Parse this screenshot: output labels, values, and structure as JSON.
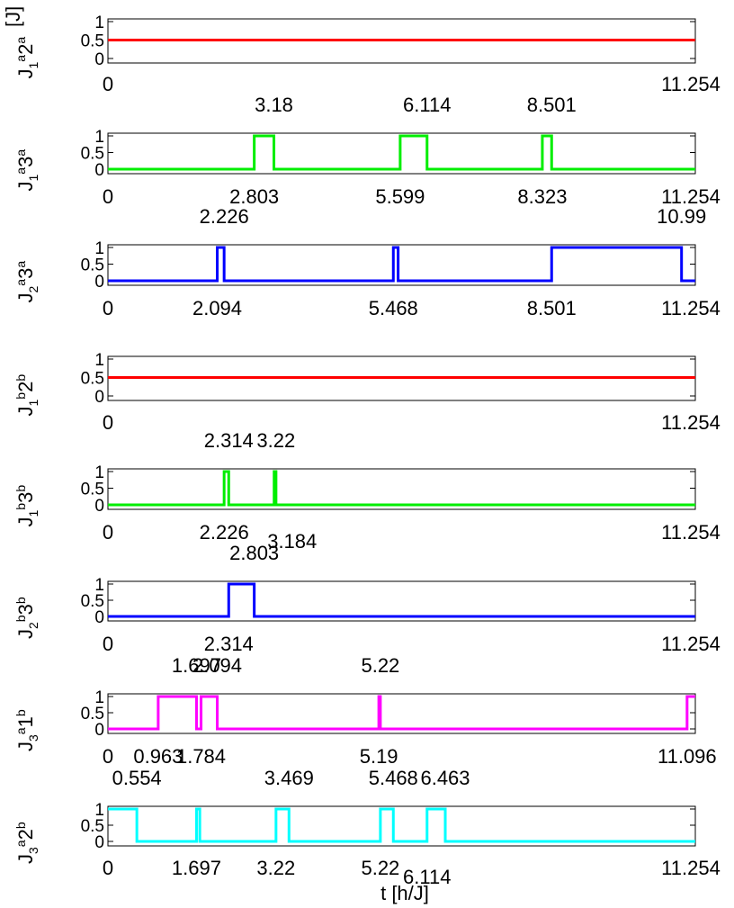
{
  "figure": {
    "xlabel": "t [h/J]",
    "unit_label": "[J]"
  },
  "chart_data": [
    {
      "type": "line",
      "ylabel": {
        "main": "J",
        "s1": "1",
        "s2": "a",
        "s3": "2",
        "s4": "a"
      },
      "color": "#ff0000",
      "xlim": [
        0,
        11.254
      ],
      "ylim": [
        0,
        1
      ],
      "yticks": [
        "0",
        "0.5",
        "1"
      ],
      "series": [
        {
          "x": [
            0,
            11.254
          ],
          "y": [
            0.5,
            0.5
          ]
        }
      ],
      "top_labels": [],
      "bottom_labels": [
        "0",
        "11.254"
      ]
    },
    {
      "type": "line",
      "ylabel": {
        "main": "J",
        "s1": "1",
        "s2": "a",
        "s3": "3",
        "s4": "a"
      },
      "color": "#00ee00",
      "xlim": [
        0,
        11.254
      ],
      "ylim": [
        0,
        1
      ],
      "yticks": [
        "0",
        "0.5",
        "1"
      ],
      "series": [
        {
          "x": [
            0,
            2.803,
            2.803,
            3.18,
            3.18,
            5.599,
            5.599,
            6.114,
            6.114,
            8.323,
            8.323,
            8.501,
            8.501,
            11.254
          ],
          "y": [
            0,
            0,
            1,
            1,
            0,
            0,
            1,
            1,
            0,
            0,
            1,
            1,
            0,
            0
          ]
        }
      ],
      "top_labels": [
        "3.18",
        "6.114",
        "8.501"
      ],
      "bottom_labels": [
        "0",
        "2.803",
        "5.599",
        "8.323",
        "11.254"
      ]
    },
    {
      "type": "line",
      "ylabel": {
        "main": "J",
        "s1": "2",
        "s2": "a",
        "s3": "3",
        "s4": "a"
      },
      "color": "#0000ff",
      "xlim": [
        0,
        11.254
      ],
      "ylim": [
        0,
        1
      ],
      "yticks": [
        "0",
        "0.5",
        "1"
      ],
      "series": [
        {
          "x": [
            0,
            2.094,
            2.094,
            2.226,
            2.226,
            5.468,
            5.468,
            5.56,
            5.56,
            8.501,
            8.501,
            10.99,
            10.99,
            11.254
          ],
          "y": [
            0,
            0,
            1,
            1,
            0,
            0,
            1,
            1,
            0,
            0,
            1,
            1,
            0,
            0
          ]
        }
      ],
      "top_labels": [
        "2.226",
        "10.99"
      ],
      "bottom_labels": [
        "0",
        "2.094",
        "5.468",
        "8.501",
        "11.254"
      ]
    },
    {
      "type": "line",
      "ylabel": {
        "main": "J",
        "s1": "1",
        "s2": "b",
        "s3": "2",
        "s4": "b"
      },
      "color": "#ff0000",
      "xlim": [
        0,
        11.254
      ],
      "ylim": [
        0,
        1
      ],
      "yticks": [
        "0",
        "0.5",
        "1"
      ],
      "series": [
        {
          "x": [
            0,
            11.254
          ],
          "y": [
            0.5,
            0.5
          ]
        }
      ],
      "top_labels": [],
      "bottom_labels": [
        "0",
        "11.254"
      ]
    },
    {
      "type": "line",
      "ylabel": {
        "main": "J",
        "s1": "1",
        "s2": "b",
        "s3": "3",
        "s4": "b"
      },
      "color": "#00ee00",
      "xlim": [
        0,
        11.254
      ],
      "ylim": [
        0,
        1
      ],
      "yticks": [
        "0",
        "0.5",
        "1"
      ],
      "series": [
        {
          "x": [
            0,
            2.226,
            2.226,
            2.314,
            2.314,
            3.184,
            3.184,
            3.22,
            3.22,
            11.254
          ],
          "y": [
            0,
            0,
            1,
            1,
            0,
            0,
            1,
            1,
            0,
            0
          ]
        }
      ],
      "top_labels": [
        "2.314",
        "3.22"
      ],
      "bottom_labels": [
        "0",
        "2.226",
        "3.184",
        "11.254"
      ]
    },
    {
      "type": "line",
      "ylabel": {
        "main": "J",
        "s1": "2",
        "s2": "b",
        "s3": "3",
        "s4": "b"
      },
      "color": "#0000ff",
      "xlim": [
        0,
        11.254
      ],
      "ylim": [
        0,
        1
      ],
      "yticks": [
        "0",
        "0.5",
        "1"
      ],
      "series": [
        {
          "x": [
            0,
            2.314,
            2.314,
            2.803,
            2.803,
            11.254
          ],
          "y": [
            0,
            0,
            1,
            1,
            0,
            0
          ]
        }
      ],
      "top_labels": [
        "2.803"
      ],
      "bottom_labels": [
        "0",
        "2.314",
        "11.254"
      ]
    },
    {
      "type": "line",
      "ylabel": {
        "main": "J",
        "s1": "3",
        "s2": "a",
        "s3": "1",
        "s4": "b"
      },
      "color": "#ff00ff",
      "xlim": [
        0,
        11.254
      ],
      "ylim": [
        0,
        1
      ],
      "yticks": [
        "0",
        "0.5",
        "1"
      ],
      "series": [
        {
          "x": [
            0,
            0.963,
            0.963,
            1.697,
            1.697,
            1.784,
            1.784,
            2.094,
            2.094,
            5.19,
            5.19,
            5.22,
            5.22,
            11.096,
            11.096,
            11.254
          ],
          "y": [
            0,
            0,
            1,
            1,
            0,
            0,
            1,
            1,
            0,
            0,
            1,
            1,
            0,
            0,
            1,
            1
          ]
        }
      ],
      "top_labels": [
        "1.697",
        "2.094",
        "5.22"
      ],
      "bottom_labels": [
        "0",
        "0.963",
        "1.784",
        "5.19",
        "11.096"
      ]
    },
    {
      "type": "line",
      "ylabel": {
        "main": "J",
        "s1": "3",
        "s2": "a",
        "s3": "2",
        "s4": "b"
      },
      "color": "#00ffff",
      "xlim": [
        0,
        11.254
      ],
      "ylim": [
        0,
        1
      ],
      "yticks": [
        "0",
        "0.5",
        "1"
      ],
      "series": [
        {
          "x": [
            0,
            0.554,
            0.554,
            1.697,
            1.697,
            1.76,
            1.76,
            3.22,
            3.22,
            3.469,
            3.469,
            5.22,
            5.22,
            5.468,
            5.468,
            6.114,
            6.114,
            6.463,
            6.463,
            11.254
          ],
          "y": [
            1,
            1,
            0,
            0,
            1,
            1,
            0,
            0,
            1,
            1,
            0,
            0,
            1,
            1,
            0,
            0,
            1,
            1,
            0,
            0
          ]
        }
      ],
      "top_labels": [
        "0.554",
        "3.469",
        "5.468",
        "6.463"
      ],
      "bottom_labels": [
        "0",
        "1.697",
        "3.22",
        "5.22",
        "6.114",
        "11.254"
      ]
    }
  ]
}
